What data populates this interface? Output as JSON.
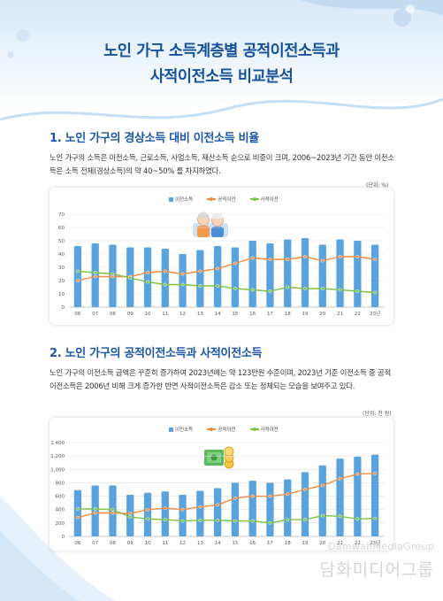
{
  "title_line1": "노인 가구 소득계층별 공적이전소득과",
  "title_line2": "사적이전소득 비교분석",
  "section1": {
    "heading": "1. 노인 가구의 경상소득 대비 이전소득 비율",
    "paragraph": "노인 가구의 소득은 이전소득, 근로소득, 사업소득, 재산소득 순으로 비중이 크며, 2006~2023년 기간 동안 이전소득은 소득 전체(경상소득)의 약 40~50% 를 차지하였다."
  },
  "section2": {
    "heading": "2. 노인 가구의 공적이전소득과 사적이전소득",
    "paragraph": "노인 가구의 이전소득 금액은 꾸준히 증가하여 2023년에는 약 123만원 수준이며, 2023년 기준 이전소득 중 공적이전소득은 2006년 비해 크게 증가한 반면 사적이전소득은 감소 또는 정체되는 모습을 보여주고 있다."
  },
  "watermark": {
    "latin": "DamwahMediaGroup",
    "korean": "담화미디어그룹"
  },
  "colors": {
    "bar": "#5aa3dc",
    "public": "#f08a3c",
    "private": "#7dc242",
    "heading": "#1a56a6",
    "title": "#14519a"
  },
  "chart_data": [
    {
      "type": "bar",
      "unit_label": "(단위: %)",
      "categories": [
        "06",
        "07",
        "08",
        "09",
        "10",
        "11",
        "12",
        "13",
        "14",
        "15",
        "16",
        "17",
        "18",
        "19",
        "20",
        "21",
        "22",
        "23년"
      ],
      "ylim": [
        0,
        70
      ],
      "yticks": [
        0,
        10,
        20,
        30,
        40,
        50,
        60,
        70
      ],
      "grid": true,
      "legend_position": "top-center",
      "series": [
        {
          "name": "이전소득",
          "kind": "bar",
          "values": [
            46,
            48,
            47,
            45,
            45,
            44,
            40,
            43,
            46,
            45,
            50,
            48,
            51,
            52,
            47,
            51,
            50,
            47
          ]
        },
        {
          "name": "공적이전",
          "kind": "line",
          "values": [
            20,
            23,
            23,
            23,
            26,
            27,
            25,
            27,
            29,
            33,
            37,
            36,
            36,
            38,
            35,
            38,
            38,
            36
          ]
        },
        {
          "name": "사적이전",
          "kind": "line",
          "values": [
            27,
            26,
            25,
            22,
            19,
            17,
            17,
            16,
            16,
            14,
            13,
            12,
            15,
            14,
            14,
            13,
            12,
            11
          ]
        }
      ]
    },
    {
      "type": "bar",
      "unit_label": "(단위: 천 원)",
      "categories": [
        "06",
        "07",
        "08",
        "09",
        "10",
        "11",
        "12",
        "13",
        "14",
        "15",
        "16",
        "17",
        "18",
        "19",
        "20",
        "21",
        "22",
        "23년"
      ],
      "ylim": [
        0,
        1400
      ],
      "yticks": [
        0,
        200,
        400,
        600,
        800,
        1000,
        1200,
        1400
      ],
      "grid": true,
      "legend_position": "top-center",
      "series": [
        {
          "name": "이전소득",
          "kind": "bar",
          "values": [
            690,
            760,
            760,
            620,
            650,
            670,
            620,
            680,
            720,
            800,
            830,
            800,
            850,
            960,
            1060,
            1160,
            1190,
            1220
          ]
        },
        {
          "name": "공적이전",
          "kind": "line",
          "values": [
            280,
            350,
            350,
            340,
            400,
            420,
            400,
            440,
            470,
            570,
            600,
            600,
            630,
            700,
            760,
            860,
            930,
            940
          ]
        },
        {
          "name": "사적이전",
          "kind": "line",
          "values": [
            410,
            410,
            400,
            290,
            260,
            250,
            230,
            240,
            240,
            230,
            230,
            200,
            250,
            250,
            310,
            300,
            260,
            270
          ]
        }
      ]
    }
  ]
}
